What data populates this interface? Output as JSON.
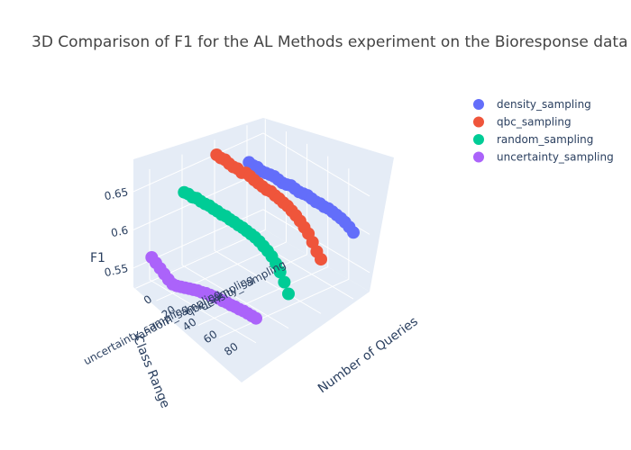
{
  "chart_data": {
    "type": "scatter3d",
    "title": "3D Comparison of F1 for the AL Methods experiment on the Bioresponse data",
    "axes": {
      "x": {
        "label": "Number of Queries",
        "ticks": [
          0,
          20,
          40,
          60,
          80
        ],
        "range": [
          -2,
          100
        ]
      },
      "y": {
        "label": "Class Range",
        "ticks": [
          "density_sampling",
          "qbc_sampling",
          "random_sampling",
          "uncertainty_sampling"
        ]
      },
      "z": {
        "label": "F1",
        "ticks": [
          0.55,
          0.6,
          0.65
        ],
        "range": [
          0.525,
          0.67
        ]
      }
    },
    "legend_position": "top-right",
    "series": [
      {
        "name": "density_sampling",
        "color": "#636efa",
        "class_index": 0,
        "x": [
          0,
          4,
          8,
          12,
          16,
          20,
          24,
          28,
          32,
          36,
          40,
          44,
          48,
          52,
          56,
          60,
          64,
          68,
          72,
          76,
          80,
          84,
          88,
          92,
          96,
          100
        ],
        "y": [
          0.623,
          0.622,
          0.623,
          0.621,
          0.622,
          0.623,
          0.624,
          0.623,
          0.622,
          0.623,
          0.625,
          0.624,
          0.623,
          0.624,
          0.625,
          0.624,
          0.623,
          0.624,
          0.623,
          0.624,
          0.623,
          0.622,
          0.621,
          0.619,
          0.616,
          0.612
        ]
      },
      {
        "name": "qbc_sampling",
        "color": "#ef553b",
        "class_index": 1,
        "x": [
          0,
          4,
          8,
          12,
          16,
          20,
          24,
          28,
          32,
          36,
          40,
          44,
          48,
          52,
          56,
          60,
          64,
          68,
          72,
          76,
          80,
          84,
          88,
          92,
          96,
          100
        ],
        "y": [
          0.652,
          0.651,
          0.652,
          0.65,
          0.649,
          0.65,
          0.648,
          0.651,
          0.65,
          0.648,
          0.647,
          0.646,
          0.645,
          0.646,
          0.644,
          0.643,
          0.641,
          0.64,
          0.637,
          0.634,
          0.63,
          0.625,
          0.62,
          0.612,
          0.603,
          0.596
        ]
      },
      {
        "name": "random_sampling",
        "color": "#00cc96",
        "class_index": 2,
        "x": [
          0,
          4,
          8,
          12,
          16,
          20,
          24,
          28,
          32,
          36,
          40,
          44,
          48,
          52,
          56,
          60,
          64,
          68,
          72,
          76,
          80,
          84,
          88,
          92,
          96,
          100
        ],
        "y": [
          0.622,
          0.623,
          0.622,
          0.624,
          0.623,
          0.623,
          0.624,
          0.623,
          0.623,
          0.622,
          0.623,
          0.622,
          0.622,
          0.621,
          0.621,
          0.62,
          0.619,
          0.618,
          0.616,
          0.613,
          0.61,
          0.606,
          0.6,
          0.592,
          0.582,
          0.57
        ]
      },
      {
        "name": "uncertainty_sampling",
        "color": "#ab63fa",
        "class_index": 3,
        "x": [
          0,
          4,
          8,
          12,
          16,
          20,
          24,
          28,
          32,
          36,
          40,
          44,
          48,
          52,
          56,
          60,
          64,
          68,
          72,
          76,
          80,
          84,
          88,
          92,
          96,
          100
        ],
        "y": [
          0.556,
          0.552,
          0.548,
          0.544,
          0.54,
          0.537,
          0.538,
          0.54,
          0.542,
          0.544,
          0.546,
          0.548,
          0.549,
          0.551,
          0.552,
          0.553,
          0.554,
          0.554,
          0.555,
          0.555,
          0.556,
          0.556,
          0.557,
          0.557,
          0.557,
          0.557
        ]
      }
    ]
  }
}
